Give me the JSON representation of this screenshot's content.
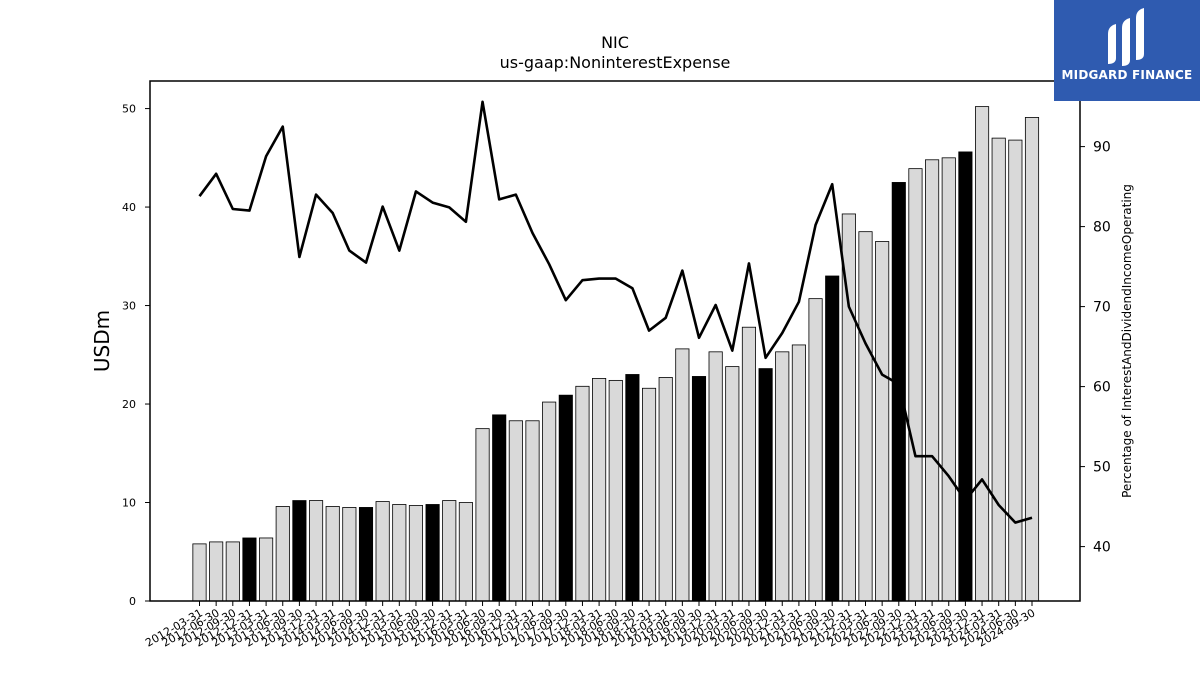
{
  "chart_data": {
    "type": "bar",
    "title": "NIC",
    "subtitle": "us-gaap:NoninterestExpense",
    "ylabel": "USDm",
    "ylabel_right": "Percentage of InterestAndDividendIncomeOperating",
    "ylim": [
      0,
      52.8
    ],
    "ylim_right": [
      33.2,
      98.2
    ],
    "yticks": [
      0,
      10,
      20,
      30,
      40,
      50
    ],
    "yticks_right": [
      40,
      50,
      60,
      70,
      80,
      90
    ],
    "grid": false,
    "categories": [
      "2012-03-31",
      "2012-06-30",
      "2012-09-30",
      "2012-12-31",
      "2013-03-31",
      "2013-06-30",
      "2013-09-30",
      "2013-12-31",
      "2014-03-31",
      "2014-06-30",
      "2014-09-30",
      "2014-12-31",
      "2015-03-31",
      "2015-06-30",
      "2015-09-30",
      "2015-12-31",
      "2016-03-31",
      "2016-06-30",
      "2016-09-30",
      "2016-12-31",
      "2017-03-31",
      "2017-06-30",
      "2017-09-30",
      "2017-12-31",
      "2018-03-31",
      "2018-06-30",
      "2018-09-30",
      "2018-12-31",
      "2019-03-31",
      "2019-06-30",
      "2019-09-30",
      "2019-12-31",
      "2020-03-31",
      "2020-06-30",
      "2020-09-30",
      "2020-12-31",
      "2021-03-31",
      "2021-06-30",
      "2021-09-30",
      "2021-12-31",
      "2022-03-31",
      "2022-06-30",
      "2022-09-30",
      "2022-12-31",
      "2023-03-31",
      "2023-06-30",
      "2023-09-30",
      "2023-12-31",
      "2024-03-31",
      "2024-06-30",
      "2024-09-30"
    ],
    "series": [
      {
        "type": "bar",
        "axis": "left",
        "values": [
          5.8,
          6.0,
          6.0,
          6.4,
          6.4,
          9.6,
          10.2,
          10.2,
          9.6,
          9.5,
          9.5,
          10.1,
          9.8,
          9.7,
          9.8,
          10.2,
          10.0,
          17.5,
          18.9,
          18.3,
          18.3,
          20.2,
          20.9,
          21.8,
          22.6,
          22.4,
          23.0,
          21.6,
          22.7,
          25.6,
          22.8,
          25.3,
          23.8,
          27.8,
          23.6,
          25.3,
          26.0,
          30.7,
          33.0,
          39.3,
          37.5,
          36.5,
          42.5,
          43.9,
          44.8,
          45.0,
          45.6,
          50.2,
          47.0,
          46.8,
          49.1
        ],
        "highlight": [
          false,
          false,
          false,
          true,
          false,
          false,
          true,
          false,
          false,
          false,
          true,
          false,
          false,
          false,
          true,
          false,
          false,
          false,
          true,
          false,
          false,
          false,
          true,
          false,
          false,
          false,
          true,
          false,
          false,
          false,
          true,
          false,
          false,
          false,
          true,
          false,
          false,
          false,
          true,
          false,
          false,
          false,
          true,
          false,
          false,
          false,
          true,
          false,
          false,
          false,
          false
        ]
      },
      {
        "type": "line",
        "axis": "right",
        "values": [
          83.8,
          86.6,
          82.2,
          82.0,
          88.8,
          92.5,
          76.2,
          84.0,
          81.7,
          77.0,
          75.5,
          82.5,
          77.0,
          84.4,
          83.0,
          82.4,
          80.6,
          95.6,
          83.4,
          84.0,
          79.2,
          75.3,
          70.8,
          73.3,
          73.5,
          73.5,
          72.3,
          67.0,
          68.6,
          74.5,
          66.1,
          70.2,
          64.5,
          75.4,
          63.6,
          66.7,
          70.6,
          80.2,
          85.3,
          70.0,
          65.4,
          61.5,
          60.3,
          51.3,
          51.3,
          48.8,
          45.8,
          48.4,
          45.2,
          43.0,
          43.6
        ]
      }
    ]
  },
  "logo": {
    "text": "MIDGARD FINANCE",
    "background": "#2f5bb0",
    "text_color": "#ffffff"
  }
}
